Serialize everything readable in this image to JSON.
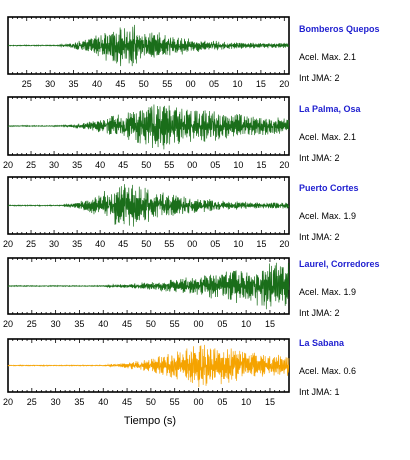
{
  "xlabel": "Tiempo (s)",
  "stations": [
    {
      "name": "Bomberos Quepos",
      "accel": "Acel. Max. 2.1",
      "int": "Int JMA: 2"
    },
    {
      "name": "La Palma, Osa",
      "accel": "Acel. Max. 2.1",
      "int": "Int JMA: 2"
    },
    {
      "name": "Puerto Cortes",
      "accel": "Acel. Max. 1.9",
      "int": "Int JMA: 2"
    },
    {
      "name": "Laurel, Corredores",
      "accel": "Acel. Max. 1.9",
      "int": "Int JMA: 2"
    },
    {
      "name": "La Sabana",
      "accel": "Acel. Max. 0.6",
      "int": "Int JMA: 1"
    }
  ],
  "chart_data": [
    {
      "type": "line",
      "series": [
        {
          "name": "Bomberos Quepos",
          "color": "#1a6e1a"
        }
      ],
      "x_ticks": [
        "25",
        "30",
        "35",
        "40",
        "45",
        "50",
        "55",
        "00",
        "05",
        "10",
        "15",
        "20"
      ],
      "x_range": [
        21,
        81
      ],
      "onset": 32,
      "peak": 46,
      "decay": 12
    },
    {
      "type": "line",
      "series": [
        {
          "name": "La Palma, Osa",
          "color": "#1a6e1a"
        }
      ],
      "x_ticks": [
        "20",
        "25",
        "30",
        "35",
        "40",
        "45",
        "50",
        "55",
        "00",
        "05",
        "10",
        "15",
        "20"
      ],
      "x_range": [
        20,
        81
      ],
      "onset": 32,
      "peak": 52,
      "decay": 25
    },
    {
      "type": "line",
      "series": [
        {
          "name": "Puerto Cortes",
          "color": "#1a6e1a"
        }
      ],
      "x_ticks": [
        "20",
        "25",
        "30",
        "35",
        "40",
        "45",
        "50",
        "55",
        "00",
        "05",
        "10",
        "15",
        "20"
      ],
      "x_range": [
        20,
        81
      ],
      "onset": 32,
      "peak": 45,
      "decay": 14
    },
    {
      "type": "line",
      "series": [
        {
          "name": "Laurel, Corredores",
          "color": "#1a6e1a"
        }
      ],
      "x_ticks": [
        "20",
        "25",
        "30",
        "35",
        "40",
        "45",
        "50",
        "55",
        "00",
        "05",
        "10",
        "15"
      ],
      "x_range": [
        20,
        79
      ],
      "onset": 40,
      "peak": 75,
      "decay": 60
    },
    {
      "type": "line",
      "series": [
        {
          "name": "La Sabana",
          "color": "#f5a300"
        }
      ],
      "x_ticks": [
        "20",
        "25",
        "30",
        "35",
        "40",
        "45",
        "50",
        "55",
        "00",
        "05",
        "10",
        "15"
      ],
      "x_range": [
        20,
        79
      ],
      "onset": 41,
      "peak": 60,
      "decay": 25
    }
  ]
}
